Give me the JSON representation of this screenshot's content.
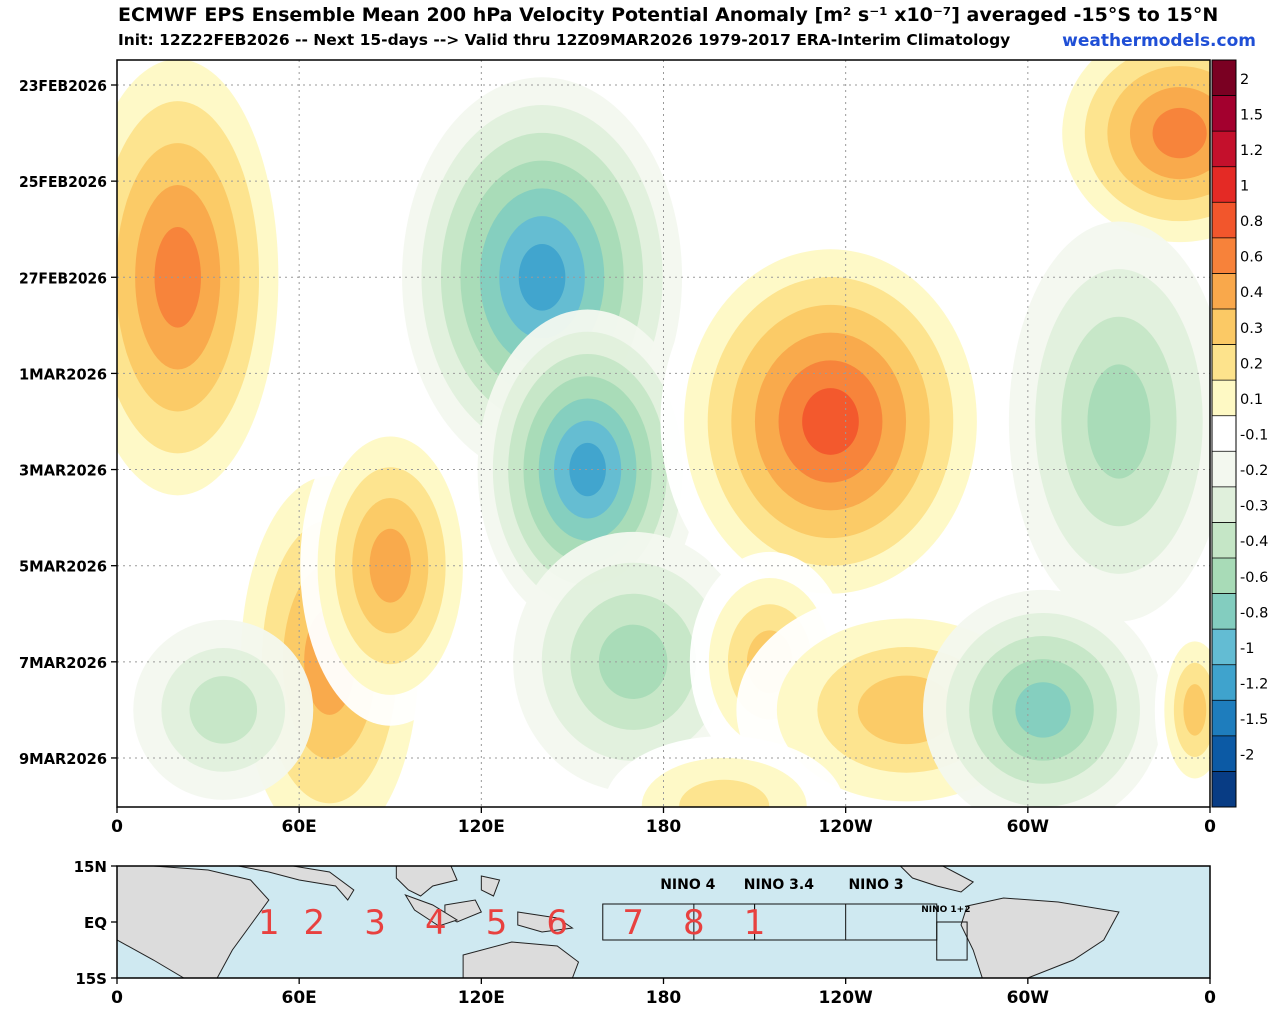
{
  "header": {
    "title": "ECMWF EPS Ensemble Mean 200 hPa Velocity Potential Anomaly [m² s⁻¹ x10⁻⁷] averaged -15°S to 15°N",
    "subtitle": "Init: 12Z22FEB2026 -- Next 15-days --> Valid thru 12Z09MAR2026 1979-2017 ERA-Interim Climatology",
    "site": "weathermodels.com"
  },
  "chart_data": [
    {
      "type": "heatmap",
      "title": "ECMWF EPS Ensemble Mean 200 hPa Velocity Potential Anomaly [m² s⁻¹ x10⁻⁷] averaged -15°S to 15°N",
      "x_ticks": [
        "0",
        "60E",
        "120E",
        "180",
        "120W",
        "60W",
        "0"
      ],
      "x_range_deg": [
        0,
        360
      ],
      "y_ticks": [
        "23FEB2026",
        "25FEB2026",
        "27FEB2026",
        "1MAR2026",
        "3MAR2026",
        "5MAR2026",
        "7MAR2026",
        "9MAR2026"
      ],
      "grid": true,
      "colorbar": {
        "levels": [
          "2",
          "1.5",
          "1.2",
          "1",
          "0.8",
          "0.6",
          "0.4",
          "0.3",
          "0.2",
          "0.1",
          "-0.1",
          "-0.2",
          "-0.3",
          "-0.4",
          "-0.6",
          "-0.8",
          "-1",
          "-1.2",
          "-1.5",
          "-2"
        ],
        "colors": [
          "#7a0022",
          "#a3002e",
          "#c4102c",
          "#e42a25",
          "#f2562c",
          "#f7823a",
          "#f9a84b",
          "#fbc965",
          "#fde38c",
          "#fef9c4",
          "#ffffff",
          "#f3f8ef",
          "#e0f0dc",
          "#c5e6c6",
          "#a8dbb7",
          "#83cdbf",
          "#63bcd3",
          "#3fa3cd",
          "#1e7dbd",
          "#0c5aa5",
          "#083c84"
        ]
      },
      "features": [
        {
          "lon": 15,
          "day": 5,
          "level": "0.8",
          "sign": "positive"
        },
        {
          "lon": 75,
          "day": 12,
          "level": "0.6",
          "sign": "positive"
        },
        {
          "lon": 145,
          "day": 3,
          "level": "-1",
          "sign": "negative"
        },
        {
          "lon": 155,
          "day": 7,
          "level": "-1",
          "sign": "negative"
        },
        {
          "lon": 230,
          "day": 7,
          "level": "1",
          "sign": "positive"
        },
        {
          "lon": 355,
          "day": 1,
          "level": "0.8",
          "sign": "positive"
        },
        {
          "lon": 300,
          "day": 13,
          "level": "-0.4",
          "sign": "negative"
        }
      ]
    },
    {
      "type": "map",
      "y_ticks": [
        "15N",
        "EQ",
        "15S"
      ],
      "x_ticks": [
        "0",
        "60E",
        "120E",
        "180",
        "120W",
        "60W",
        "0"
      ],
      "regions": [
        "NINO 4",
        "NINO 3.4",
        "NINO 3",
        "NINO 1+2"
      ],
      "phases": [
        "1",
        "2",
        "3",
        "4",
        "5",
        "6",
        "7",
        "8",
        "1"
      ]
    }
  ]
}
